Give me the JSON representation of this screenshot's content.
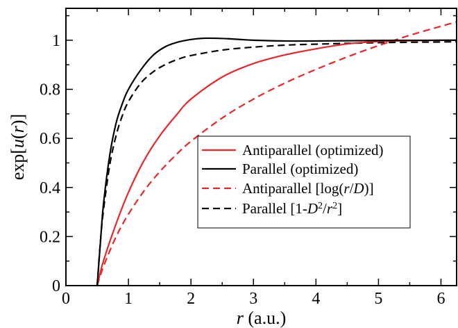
{
  "chart_data": {
    "type": "line",
    "xlabel_italic": "r",
    "xlabel_rest": " (a.u.)",
    "ylabel_pre": "exp[",
    "ylabel_italic": "u",
    "ylabel_mid": "(",
    "ylabel_italic2": "r",
    "ylabel_post": ")]",
    "xlim": [
      0,
      6.25
    ],
    "ylim": [
      0,
      1.13
    ],
    "xticks": [
      0,
      1,
      2,
      3,
      4,
      5,
      6
    ],
    "yticks": [
      0,
      0.2,
      0.4,
      0.6,
      0.8,
      1
    ],
    "ytick_labels": [
      "0",
      "0.2",
      "0.4",
      "0.6",
      "0.8",
      "1"
    ],
    "xtick_labels": [
      "0",
      "1",
      "2",
      "3",
      "4",
      "5",
      "6"
    ],
    "grid": false,
    "legend_position": "center-right",
    "series": [
      {
        "name": "Antiparallel (optimized)",
        "color": "#e8262a",
        "dash": "solid",
        "x": [
          0.5,
          0.6,
          0.8,
          1.0,
          1.25,
          1.5,
          1.75,
          2.0,
          2.5,
          3.0,
          3.5,
          4.0,
          4.5,
          5.0,
          5.5,
          6.0,
          6.25
        ],
        "y": [
          0.0,
          0.1,
          0.25,
          0.38,
          0.51,
          0.61,
          0.69,
          0.76,
          0.85,
          0.905,
          0.94,
          0.965,
          0.985,
          0.995,
          0.998,
          1.0,
          1.0
        ]
      },
      {
        "name": "Parallel (optimized)",
        "color": "#000000",
        "dash": "solid",
        "x": [
          0.5,
          0.55,
          0.6,
          0.7,
          0.8,
          0.9,
          1.0,
          1.2,
          1.4,
          1.6,
          1.8,
          2.0,
          2.2,
          2.4,
          2.6,
          2.8,
          3.0,
          3.5,
          4.0,
          5.0,
          6.25
        ],
        "y": [
          0.0,
          0.17,
          0.33,
          0.53,
          0.66,
          0.74,
          0.8,
          0.88,
          0.94,
          0.975,
          0.993,
          1.003,
          1.008,
          1.008,
          1.006,
          1.003,
          1.0,
          0.997,
          0.997,
          0.999,
          1.0
        ]
      },
      {
        "name": "Antiparallel [log(r/D)]",
        "color": "#e8262a",
        "dash": "dashed",
        "x": [
          0.5,
          0.6,
          0.8,
          1.0,
          1.25,
          1.5,
          1.75,
          2.0,
          2.5,
          3.0,
          3.5,
          4.0,
          4.5,
          5.0,
          5.5,
          6.0,
          6.25
        ],
        "y": [
          0.0,
          0.077,
          0.198,
          0.291,
          0.386,
          0.464,
          0.53,
          0.588,
          0.683,
          0.76,
          0.825,
          0.881,
          0.932,
          0.978,
          1.02,
          1.057,
          1.075
        ]
      },
      {
        "name": "Parallel [1-D^2/r^2]",
        "color": "#000000",
        "dash": "dashed",
        "x": [
          0.5,
          0.55,
          0.6,
          0.7,
          0.8,
          0.9,
          1.0,
          1.2,
          1.4,
          1.6,
          1.8,
          2.0,
          2.5,
          3.0,
          3.5,
          4.0,
          5.0,
          6.0,
          6.25
        ],
        "y": [
          0.0,
          0.174,
          0.306,
          0.49,
          0.609,
          0.691,
          0.75,
          0.826,
          0.872,
          0.902,
          0.923,
          0.9375,
          0.96,
          0.972,
          0.98,
          0.984,
          0.99,
          0.993,
          0.994
        ]
      }
    ],
    "legend": [
      {
        "pre": "Antiparallel (optimized)",
        "color": "#e8262a",
        "dash": "solid"
      },
      {
        "pre": "Parallel (optimized)",
        "color": "#000000",
        "dash": "solid"
      },
      {
        "pre": "Antiparallel [log(",
        "it1": "r",
        "mid": "/",
        "it2": "D",
        "post": ")]",
        "color": "#e8262a",
        "dash": "dashed"
      },
      {
        "pre": "Parallel [1-",
        "it1": "D",
        "sup1": "2",
        "mid": "/",
        "it2": "r",
        "sup2": "2",
        "post": "]",
        "color": "#000000",
        "dash": "dashed"
      }
    ]
  }
}
